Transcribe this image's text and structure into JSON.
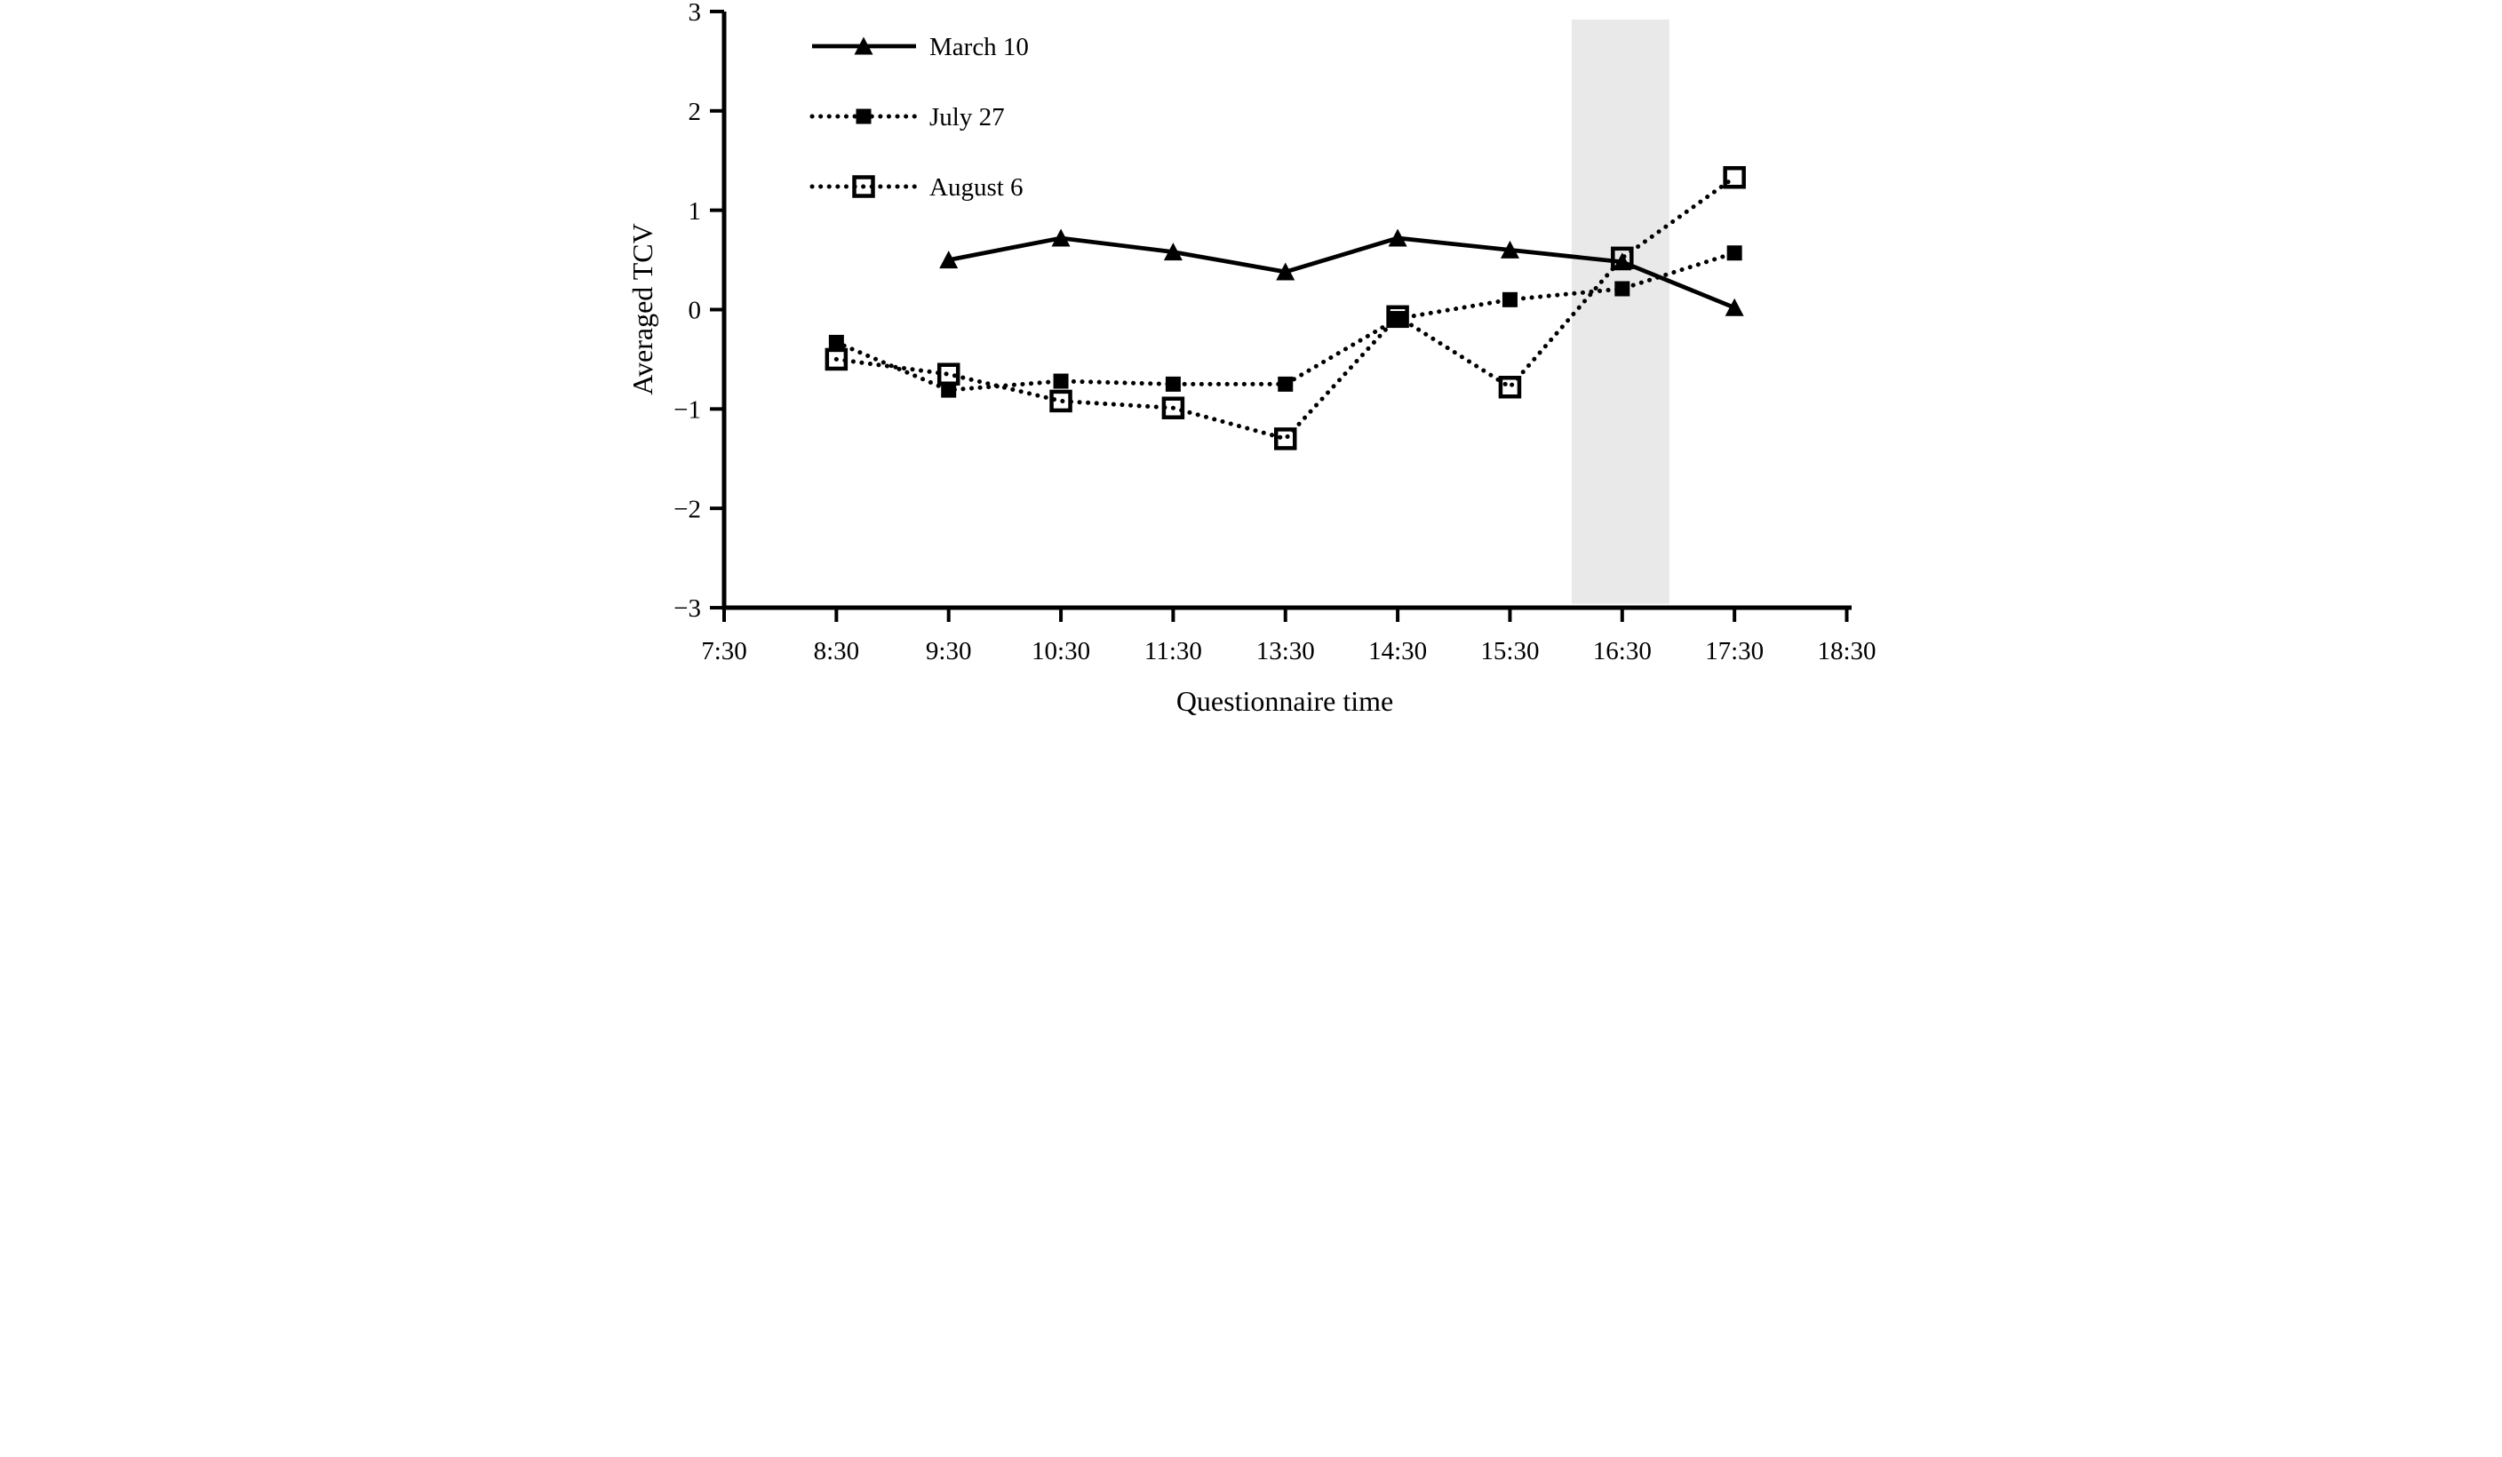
{
  "figure": {
    "background": "#ffffff",
    "foreground": "#000000"
  },
  "chart_data": {
    "type": "line",
    "title": "",
    "xlabel": "Questionnaire time",
    "ylabel": "Averaged TCV",
    "categories": [
      "7:30",
      "8:30",
      "9:30",
      "10:30",
      "11:30",
      "13:30",
      "14:30",
      "15:30",
      "16:30",
      "17:30",
      "18:30"
    ],
    "y_tick_values": [
      -3,
      -2,
      -1,
      0,
      1,
      2,
      3
    ],
    "y_tick_labels": [
      "−3",
      "−2",
      "−1",
      "0",
      "1",
      "2",
      "3"
    ],
    "ylim": [
      -3,
      3
    ],
    "grid": false,
    "legend_position": "top-left-inside",
    "series": [
      {
        "name": "March 10",
        "color": "#000000",
        "line": "solid",
        "marker": "filled-triangle",
        "values": [
          null,
          null,
          0.5,
          0.72,
          0.58,
          0.38,
          0.72,
          0.6,
          0.48,
          0.02,
          null
        ]
      },
      {
        "name": "July 27",
        "color": "#000000",
        "line": "dotted",
        "marker": "filled-square",
        "values": [
          null,
          -0.33,
          -0.81,
          -0.72,
          -0.75,
          -0.75,
          -0.09,
          0.1,
          0.21,
          0.57,
          null
        ]
      },
      {
        "name": "August 6",
        "color": "#000000",
        "line": "dotted",
        "marker": "open-square",
        "values": [
          null,
          -0.5,
          -0.65,
          -0.92,
          -0.99,
          -1.3,
          -0.07,
          -0.78,
          0.52,
          1.33,
          null
        ]
      }
    ],
    "highlight_band": {
      "note": "vertical gray shaded band around 16:30",
      "x_start_units": 7.55,
      "x_end_units": 8.42,
      "y_top": 2.92,
      "y_bottom": -2.96,
      "color": "#e9e9e9"
    }
  }
}
